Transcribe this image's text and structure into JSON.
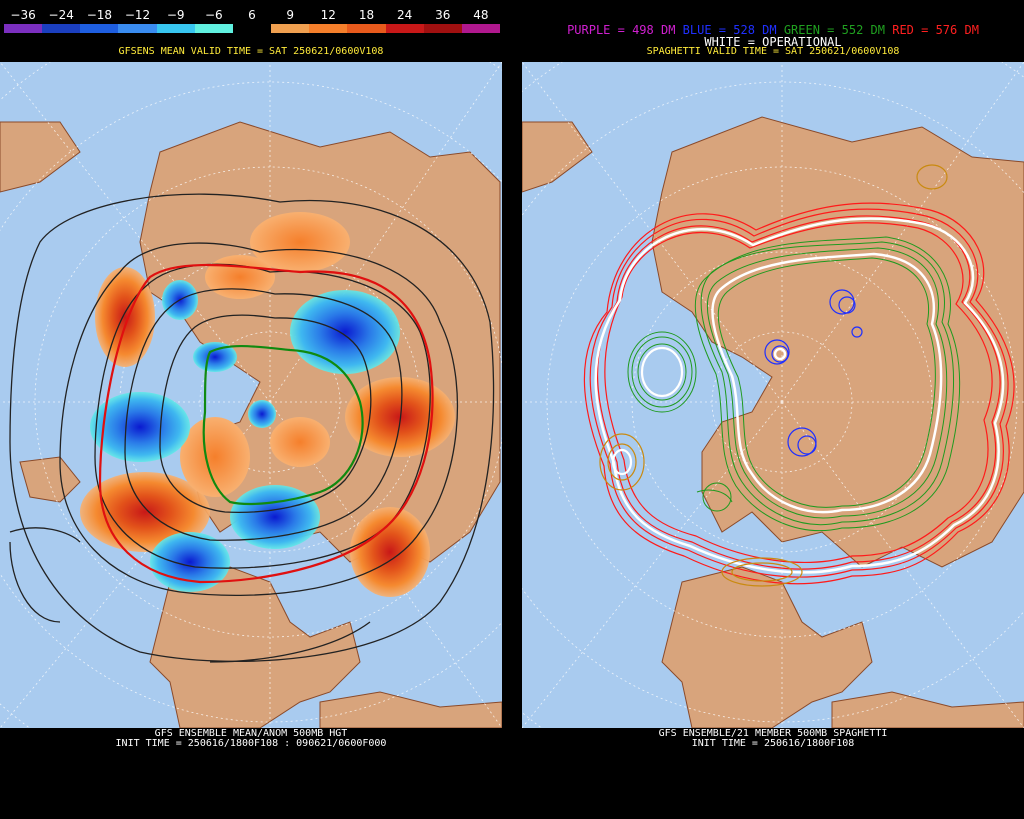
{
  "left_panel": {
    "scale": {
      "labels": [
        "−36",
        "−24",
        "−18",
        "−12",
        "−9",
        "−6",
        "6",
        "9",
        "12",
        "18",
        "24",
        "36",
        "48"
      ],
      "colors": [
        "#7b2fbf",
        "#1b3fbf",
        "#1e5ee0",
        "#3a8cf0",
        "#38c6f0",
        "#60f0e0",
        "#000000",
        "#f0a050",
        "#f57f2b",
        "#e85a1c",
        "#c81818",
        "#a01010",
        "#b0188e"
      ]
    },
    "valid_time": "GFSENS MEAN VALID TIME = SAT 250621/0600V108",
    "footer_line1": "GFS ENSEMBLE MEAN/ANOM 500MB HGT",
    "footer_line2": "INIT TIME = 250616/1800F108 : 090621/0600F000"
  },
  "right_panel": {
    "legend": {
      "purple": "PURPLE = 498 DM",
      "blue": "BLUE = 528 DM",
      "green": "GREEN = 552 DM",
      "red": "RED = 576 DM",
      "white": "WHITE = OPERATIONAL"
    },
    "legend_colors": {
      "purple": "#d020d0",
      "blue": "#2030ff",
      "green": "#20a020",
      "red": "#ff2020",
      "white": "#ffffff"
    },
    "valid_time": "SPAGHETTI VALID TIME = SAT 250621/0600V108",
    "footer_line1": "GFS ENSEMBLE/21 MEMBER 500MB SPAGHETTI",
    "footer_line2": "INIT TIME = 250616/1800F108"
  },
  "colors": {
    "ocean": "#a9cbef",
    "land": "#d8a47c",
    "coast": "#8a4a2a",
    "grid": "#ffffff"
  }
}
